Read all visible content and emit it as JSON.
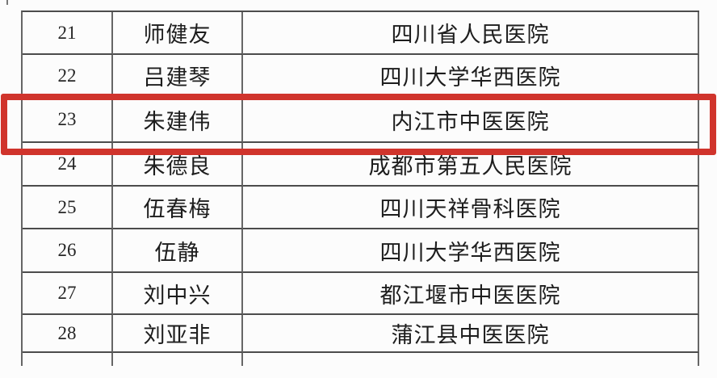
{
  "table": {
    "rows": [
      {
        "no": "21",
        "name": "师健友",
        "hospital": "四川省人民医院"
      },
      {
        "no": "22",
        "name": "吕建琴",
        "hospital": "四川大学华西医院"
      },
      {
        "no": "23",
        "name": "朱建伟",
        "hospital": "内江市中医医院"
      },
      {
        "no": "24",
        "name": "朱德良",
        "hospital": "成都市第五人民医院"
      },
      {
        "no": "25",
        "name": "伍春梅",
        "hospital": "四川天祥骨科医院"
      },
      {
        "no": "26",
        "name": "伍静",
        "hospital": "四川大学华西医院"
      },
      {
        "no": "27",
        "name": "刘中兴",
        "hospital": "都江堰市中医医院"
      },
      {
        "no": "28",
        "name": "刘亚非",
        "hospital": "蒲江县中医医院"
      }
    ]
  },
  "highlight": {
    "highlighted_row_no": "23",
    "color": "#d0342c"
  }
}
